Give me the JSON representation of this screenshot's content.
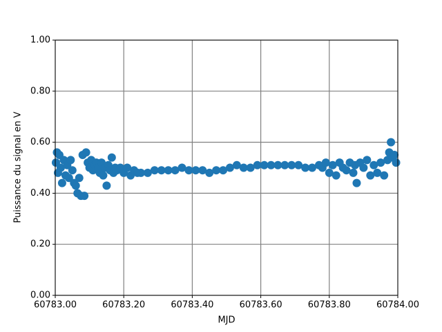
{
  "chart_data": {
    "type": "scatter",
    "x_label": "MJD",
    "y_label": "Puissance du signal en V",
    "xlim": [
      60783,
      60784
    ],
    "ylim": [
      0,
      1
    ],
    "xticks": [
      {
        "value": 60783,
        "label": "60783.00"
      },
      {
        "value": 60783.2,
        "label": "60783.20"
      },
      {
        "value": 60783.4,
        "label": "60783.40"
      },
      {
        "value": 60783.6,
        "label": "60783.60"
      },
      {
        "value": 60783.8,
        "label": "60783.80"
      },
      {
        "value": 60784,
        "label": "60784.00"
      }
    ],
    "yticks": [
      {
        "value": 0,
        "label": "0.00"
      },
      {
        "value": 0.2,
        "label": "0.20"
      },
      {
        "value": 0.4,
        "label": "0.40"
      },
      {
        "value": 0.6,
        "label": "0.60"
      },
      {
        "value": 0.8,
        "label": "0.80"
      },
      {
        "value": 1,
        "label": "1.00"
      }
    ],
    "grid": true,
    "color": "#1f77b4",
    "x": [
      60783.002,
      60783.005,
      60783.008,
      60783.012,
      60783.016,
      60783.02,
      60783.025,
      60783.03,
      60783.035,
      60783.04,
      60783.045,
      60783.05,
      60783.055,
      60783.06,
      60783.065,
      60783.07,
      60783.075,
      60783.08,
      60783.085,
      60783.09,
      60783.095,
      60783.1,
      60783.105,
      60783.11,
      60783.115,
      60783.12,
      60783.125,
      60783.13,
      60783.135,
      60783.14,
      60783.145,
      60783.15,
      60783.155,
      60783.16,
      60783.165,
      60783.17,
      60783.175,
      60783.18,
      60783.19,
      60783.2,
      60783.21,
      60783.22,
      60783.23,
      60783.24,
      60783.25,
      60783.27,
      60783.29,
      60783.31,
      60783.33,
      60783.35,
      60783.37,
      60783.39,
      60783.41,
      60783.43,
      60783.45,
      60783.47,
      60783.49,
      60783.51,
      60783.53,
      60783.55,
      60783.57,
      60783.59,
      60783.61,
      60783.63,
      60783.65,
      60783.67,
      60783.69,
      60783.71,
      60783.73,
      60783.75,
      60783.77,
      60783.78,
      60783.79,
      60783.8,
      60783.81,
      60783.82,
      60783.83,
      60783.84,
      60783.85,
      60783.86,
      60783.87,
      60783.875,
      60783.88,
      60783.89,
      60783.9,
      60783.91,
      60783.92,
      60783.93,
      60783.94,
      60783.95,
      60783.96,
      60783.97,
      60783.975,
      60783.98,
      60783.985,
      60783.99,
      60783.995
    ],
    "values": [
      0.52,
      0.56,
      0.48,
      0.55,
      0.5,
      0.44,
      0.53,
      0.47,
      0.51,
      0.46,
      0.53,
      0.49,
      0.44,
      0.43,
      0.4,
      0.46,
      0.39,
      0.55,
      0.39,
      0.56,
      0.52,
      0.5,
      0.53,
      0.49,
      0.51,
      0.52,
      0.5,
      0.48,
      0.52,
      0.47,
      0.5,
      0.43,
      0.51,
      0.49,
      0.54,
      0.48,
      0.5,
      0.49,
      0.5,
      0.48,
      0.5,
      0.47,
      0.49,
      0.48,
      0.48,
      0.48,
      0.49,
      0.49,
      0.49,
      0.49,
      0.5,
      0.49,
      0.49,
      0.49,
      0.48,
      0.49,
      0.49,
      0.5,
      0.51,
      0.5,
      0.5,
      0.51,
      0.51,
      0.51,
      0.51,
      0.51,
      0.51,
      0.51,
      0.5,
      0.5,
      0.51,
      0.5,
      0.52,
      0.48,
      0.51,
      0.47,
      0.52,
      0.5,
      0.49,
      0.52,
      0.48,
      0.51,
      0.44,
      0.52,
      0.5,
      0.53,
      0.47,
      0.51,
      0.48,
      0.52,
      0.47,
      0.53,
      0.56,
      0.6,
      0.54,
      0.55,
      0.52
    ]
  }
}
